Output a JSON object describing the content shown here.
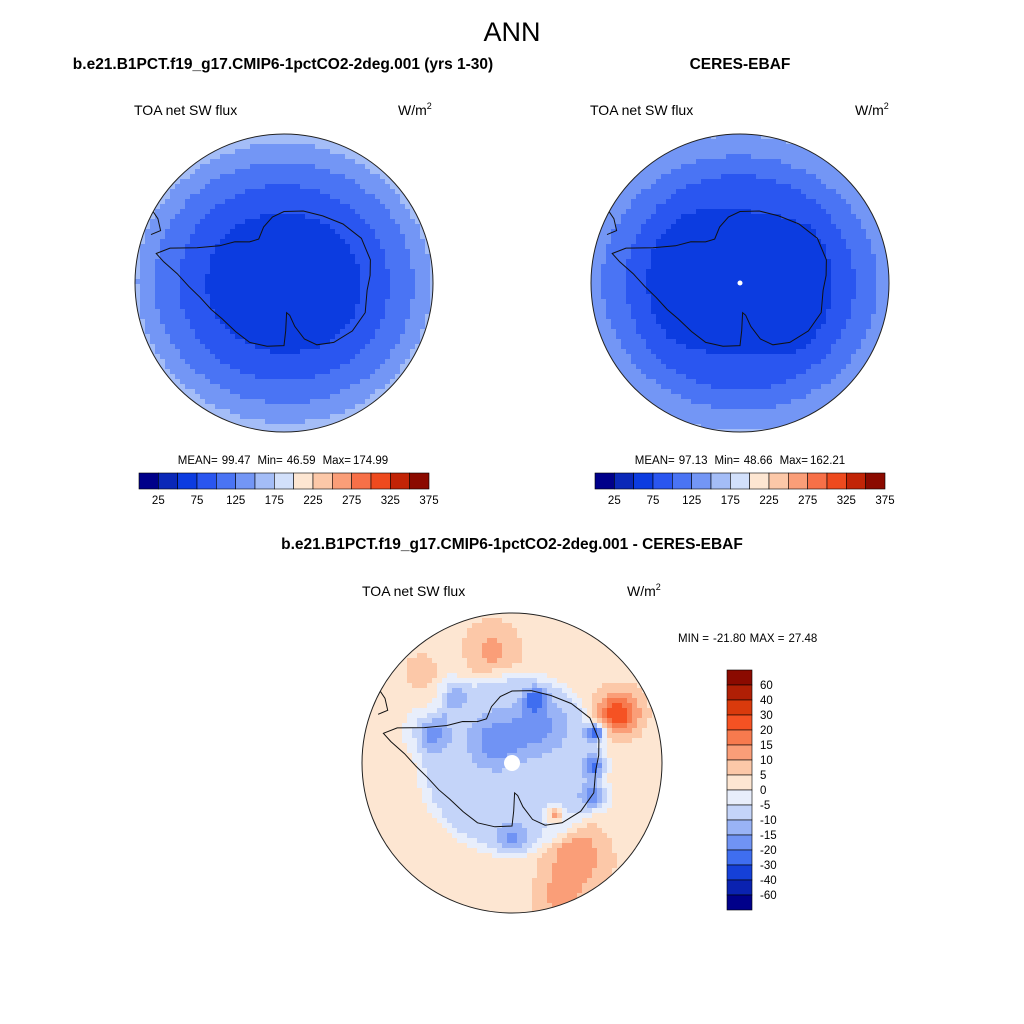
{
  "page_title": "ANN",
  "colors": {
    "land_outline": "#111111",
    "circle_outline": "#222222"
  },
  "chart_data": [
    {
      "type": "heatmap",
      "projection": "south-polar-stereographic",
      "title": "b.e21.B1PCT.f19_g17.CMIP6-1pctCO2-2deg.001 (yrs 1-30)",
      "variable": "TOA net SW flux",
      "units": "W/m",
      "units_sup": "2",
      "stats": {
        "mean_label": "MEAN=",
        "mean": "99.47",
        "min_label": "Min=",
        "min": "46.59",
        "max_label": "Max=",
        "max": "174.99"
      },
      "colorbar": {
        "orientation": "horizontal",
        "levels": [
          25,
          50,
          75,
          100,
          125,
          150,
          175,
          200,
          225,
          250,
          275,
          300,
          325,
          350,
          375
        ],
        "tick_labels": [
          "25",
          "75",
          "125",
          "175",
          "225",
          "275",
          "325",
          "375"
        ],
        "colors": [
          "#00008a",
          "#0a28b8",
          "#0c3ce0",
          "#2a56f0",
          "#4a74f4",
          "#7396f5",
          "#a4bdf7",
          "#d2e0fb",
          "#fde6d2",
          "#fcc8a8",
          "#fa9e78",
          "#f77048",
          "#ee4a1e",
          "#c22406",
          "#8b0a00"
        ]
      },
      "field": {
        "pole_value": 55,
        "rings": [
          [
            0.0,
            55
          ],
          [
            0.45,
            70
          ],
          [
            0.62,
            90
          ],
          [
            0.74,
            110
          ],
          [
            0.84,
            125
          ],
          [
            0.92,
            140
          ],
          [
            1.0,
            160
          ]
        ],
        "anomalies": []
      }
    },
    {
      "type": "heatmap",
      "projection": "south-polar-stereographic",
      "title": "CERES-EBAF",
      "variable": "TOA net SW flux",
      "units": "W/m",
      "units_sup": "2",
      "stats": {
        "mean_label": "MEAN=",
        "mean": "97.13",
        "min_label": "Min=",
        "min": "48.66",
        "max_label": "Max=",
        "max": "162.21"
      },
      "colorbar": {
        "orientation": "horizontal",
        "levels": [
          25,
          50,
          75,
          100,
          125,
          150,
          175,
          200,
          225,
          250,
          275,
          300,
          325,
          350,
          375
        ],
        "tick_labels": [
          "25",
          "75",
          "125",
          "175",
          "225",
          "275",
          "325",
          "375"
        ],
        "colors": [
          "#00008a",
          "#0a28b8",
          "#0c3ce0",
          "#2a56f0",
          "#4a74f4",
          "#7396f5",
          "#a4bdf7",
          "#d2e0fb",
          "#fde6d2",
          "#fcc8a8",
          "#fa9e78",
          "#f77048",
          "#ee4a1e",
          "#c22406",
          "#8b0a00"
        ]
      },
      "field": {
        "pole_value": 60,
        "rings": [
          [
            0.0,
            60
          ],
          [
            0.6,
            75
          ],
          [
            0.72,
            95
          ],
          [
            0.82,
            115
          ],
          [
            0.92,
            130
          ],
          [
            1.0,
            145
          ]
        ],
        "anomalies": []
      }
    },
    {
      "type": "heatmap",
      "projection": "south-polar-stereographic",
      "title": "b.e21.B1PCT.f19_g17.CMIP6-1pctCO2-2deg.001 - CERES-EBAF",
      "variable": "TOA net SW flux",
      "units": "W/m",
      "units_sup": "2",
      "stats": {
        "min_label": "MIN =",
        "min": "-21.80",
        "max_label": "MAX =",
        "max": "27.48"
      },
      "colorbar": {
        "orientation": "vertical",
        "levels": [
          -60,
          -40,
          -30,
          -20,
          -15,
          -10,
          -5,
          0,
          5,
          10,
          15,
          20,
          30,
          40,
          60
        ],
        "tick_labels": [
          "60",
          "40",
          "30",
          "20",
          "15",
          "10",
          "5",
          "0",
          "-5",
          "-10",
          "-15",
          "-20",
          "-30",
          "-40",
          "-60"
        ],
        "colors": [
          "#8b0a00",
          "#b01f05",
          "#d93a0c",
          "#f55223",
          "#f77a4e",
          "#fa9e78",
          "#fcc8a8",
          "#fde6d2",
          "#e8eefb",
          "#c4d4f9",
          "#99b3f6",
          "#7093f4",
          "#3f6ef0",
          "#1540d8",
          "#0a22b0",
          "#00008a"
        ]
      },
      "field": {
        "pole_value": -7,
        "rings": [
          [
            0.0,
            -7
          ],
          [
            0.55,
            -7
          ],
          [
            0.66,
            2
          ],
          [
            1.0,
            3
          ]
        ],
        "anomalies": [
          {
            "lon": 65,
            "r": 0.78,
            "radius": 0.17,
            "value": 22
          },
          {
            "lon": 70,
            "r": 0.6,
            "radius": 0.07,
            "value": -24
          },
          {
            "lon": 112,
            "r": 0.6,
            "radius": 0.1,
            "value": -15
          },
          {
            "lon": 92,
            "r": 0.55,
            "radius": 0.08,
            "value": -16
          },
          {
            "lon": 145,
            "r": 0.75,
            "radius": 0.24,
            "value": 12
          },
          {
            "lon": 140,
            "r": 0.45,
            "radius": 0.06,
            "value": 18
          },
          {
            "lon": 160,
            "r": 0.95,
            "radius": 0.18,
            "value": 9
          },
          {
            "lon": 20,
            "r": 0.45,
            "radius": 0.08,
            "value": -19
          },
          {
            "lon": -10,
            "r": 0.75,
            "radius": 0.2,
            "value": 9
          },
          {
            "lon": -70,
            "r": 0.6,
            "radius": 0.15,
            "value": -12
          },
          {
            "lon": -40,
            "r": 0.62,
            "radius": 0.12,
            "value": -9
          },
          {
            "lon": -45,
            "r": 0.85,
            "radius": 0.13,
            "value": 7
          },
          {
            "lon": -35,
            "r": 0.18,
            "radius": 0.2,
            "value": -12
          },
          {
            "lon": 35,
            "r": 0.3,
            "radius": 0.2,
            "value": -11
          },
          {
            "lon": 180,
            "r": 0.5,
            "radius": 0.12,
            "value": -9
          }
        ]
      }
    }
  ]
}
